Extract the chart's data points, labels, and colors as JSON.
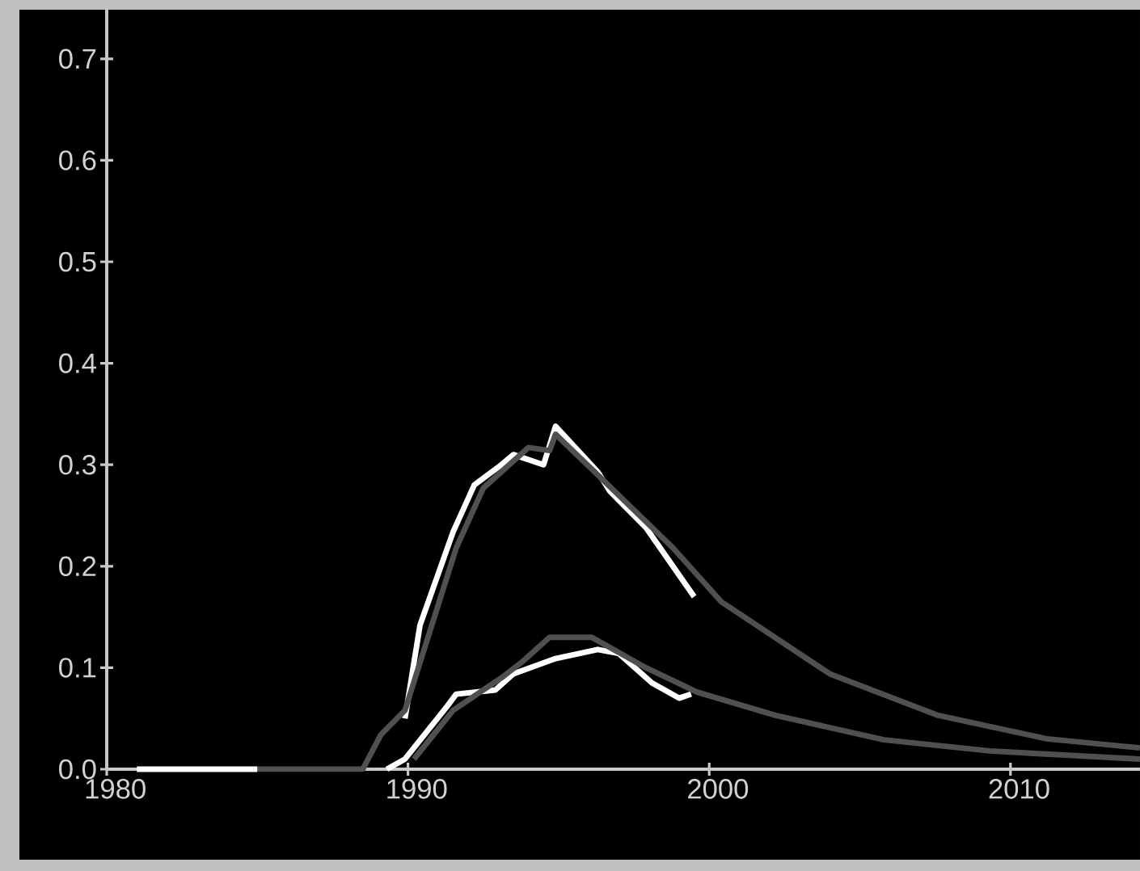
{
  "chart_data": {
    "type": "line",
    "x": [
      1981,
      1985,
      1988.5,
      1989.1,
      1989.9,
      1990.4,
      1991.5,
      1992.2,
      1993.1,
      1993.5,
      1994.5,
      1994.9,
      1996.3,
      1996.7,
      1997.9,
      1999.5
    ],
    "series": [
      {
        "color": "#ffffff",
        "values": [
          0,
          0,
          null,
          null,
          0.05,
          0.142,
          0.234,
          0.28,
          0.3,
          0.31,
          0.3,
          0.338,
          0.293,
          0.274,
          0.238,
          0.17
        ]
      },
      {
        "color": "#505050",
        "x": [
          1985,
          1988.5,
          1989.1,
          1989.9,
          1991.6,
          1992.5,
          1994.0,
          1994.7,
          1994.9,
          1996.3,
          1998.8,
          2000.4,
          2004.0,
          2007.6,
          2011.2,
          2014.3
        ],
        "values": [
          0,
          0,
          0.034,
          0.058,
          0.218,
          0.277,
          0.317,
          0.314,
          0.33,
          0.29,
          0.218,
          0.165,
          0.094,
          0.053,
          0.03,
          0.021
        ]
      },
      {
        "color": "#ffffff",
        "x": [
          1989.3,
          1989.9,
          1991.3,
          1991.6,
          1992.9,
          1993.5,
          1994.9,
          1996.3,
          1997.0,
          1998.1,
          1999.0,
          1999.4
        ],
        "values": [
          0,
          0.01,
          0.062,
          0.074,
          0.078,
          0.094,
          0.109,
          0.118,
          0.114,
          0.085,
          0.07,
          0.074
        ]
      },
      {
        "color": "#505050",
        "x": [
          1990.2,
          1991.5,
          1993.1,
          1993.8,
          1994.7,
          1996.1,
          1997.9,
          1999.6,
          2002.2,
          2005.8,
          2009.3,
          2014.3
        ],
        "values": [
          0.01,
          0.058,
          0.09,
          0.106,
          0.13,
          0.13,
          0.1,
          0.076,
          0.053,
          0.029,
          0.018,
          0.01
        ]
      }
    ],
    "xlim": [
      1980,
      2014.3
    ],
    "ylim": [
      0,
      0.75
    ],
    "xticks": [
      1980,
      1990,
      2000,
      2010
    ],
    "yticks": [
      {
        "value": 0,
        "label": "0.0"
      },
      0.1,
      0.2,
      0.3,
      0.4,
      0.5,
      0.6,
      0.7
    ],
    "grid": false,
    "marker": "none",
    "line_style": "solid"
  }
}
